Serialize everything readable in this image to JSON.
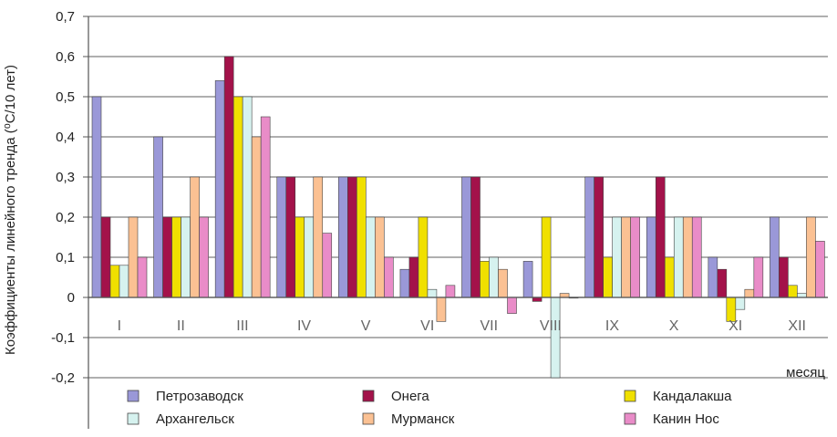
{
  "chart_data": {
    "type": "bar",
    "ylabel": "Коэффициенты линейного тренда (⁰С/10 лет)",
    "xlabel": "месяц",
    "ylim": [
      -0.2,
      0.7
    ],
    "yticks": [
      "0,7",
      "0,6",
      "0,5",
      "0,4",
      "0,3",
      "0,2",
      "0,1",
      "0",
      "-0,1",
      "-0,2"
    ],
    "categories": [
      "I",
      "II",
      "III",
      "IV",
      "V",
      "VI",
      "VII",
      "VIII",
      "IX",
      "X",
      "XI",
      "XII"
    ],
    "grid": true,
    "legend_position": "bottom",
    "series": [
      {
        "name": "Петрозаводск",
        "color": "#9a98d8",
        "values": [
          0.5,
          0.4,
          0.54,
          0.3,
          0.3,
          0.07,
          0.3,
          0.09,
          0.3,
          0.2,
          0.1,
          0.2
        ]
      },
      {
        "name": "Онега",
        "color": "#a3124a",
        "values": [
          0.2,
          0.2,
          0.6,
          0.3,
          0.3,
          0.1,
          0.3,
          -0.01,
          0.3,
          0.3,
          0.07,
          0.1
        ]
      },
      {
        "name": "Кандалакша",
        "color": "#f0e000",
        "values": [
          0.08,
          0.2,
          0.5,
          0.2,
          0.3,
          0.2,
          0.09,
          0.2,
          0.1,
          0.1,
          -0.06,
          0.03
        ]
      },
      {
        "name": "Архангельск",
        "color": "#d6f2ef",
        "values": [
          0.08,
          0.2,
          0.5,
          0.2,
          0.2,
          0.02,
          0.1,
          -0.2,
          0.2,
          0.2,
          -0.03,
          0.01
        ]
      },
      {
        "name": "Мурманск",
        "color": "#fbc193",
        "values": [
          0.2,
          0.3,
          0.4,
          0.3,
          0.2,
          -0.06,
          0.07,
          0.01,
          0.2,
          0.2,
          0.02,
          0.2
        ]
      },
      {
        "name": "Канин Нос",
        "color": "#e98cc8",
        "values": [
          0.1,
          0.2,
          0.45,
          0.16,
          0.1,
          0.03,
          -0.04,
          0.0,
          0.2,
          0.2,
          0.1,
          0.14
        ]
      }
    ]
  }
}
